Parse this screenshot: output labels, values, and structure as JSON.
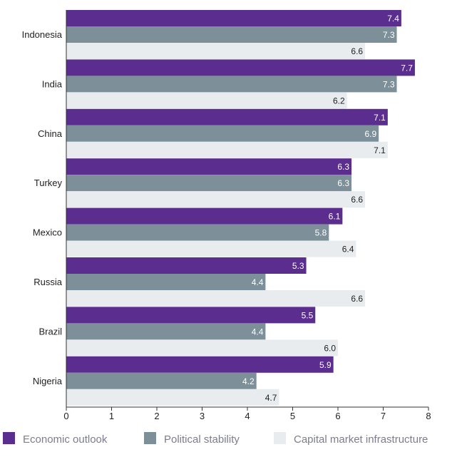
{
  "chart_data": {
    "type": "bar",
    "orientation": "horizontal",
    "title": "",
    "xlabel": "",
    "ylabel": "",
    "xlim": [
      0,
      8
    ],
    "ticks": [
      "0",
      "1",
      "2",
      "3",
      "4",
      "5",
      "6",
      "7",
      "8"
    ],
    "grid": false,
    "legend_position": "bottom",
    "categories": [
      "Indonesia",
      "India",
      "China",
      "Turkey",
      "Mexico",
      "Russia",
      "Brazil",
      "Nigeria"
    ],
    "series": [
      {
        "name": "Economic outlook",
        "color": "#5b2d8e",
        "label_color": "#ffffff",
        "values": [
          7.4,
          7.7,
          7.1,
          6.3,
          6.1,
          5.3,
          5.5,
          5.9
        ],
        "labels": [
          "7.4",
          "7.7",
          "7.1",
          "6.3",
          "6.1",
          "5.3",
          "5.5",
          "5.9"
        ]
      },
      {
        "name": "Political stability",
        "color": "#7d8f99",
        "label_color": "#ffffff",
        "values": [
          7.3,
          7.3,
          6.9,
          6.3,
          5.8,
          4.4,
          4.4,
          4.2
        ],
        "labels": [
          "7.3",
          "7.3",
          "6.9",
          "6.3",
          "5.8",
          "4.4",
          "4.4",
          "4.2"
        ]
      },
      {
        "name": "Capital market infrastructure",
        "color": "#e8ecee",
        "label_color": "#222222",
        "values": [
          6.6,
          6.2,
          7.1,
          6.6,
          6.4,
          6.6,
          6.0,
          4.7
        ],
        "labels": [
          "6.6",
          "6.2",
          "7.1",
          "6.6",
          "6.4",
          "6.6",
          "6.0",
          "4.7"
        ]
      }
    ]
  }
}
